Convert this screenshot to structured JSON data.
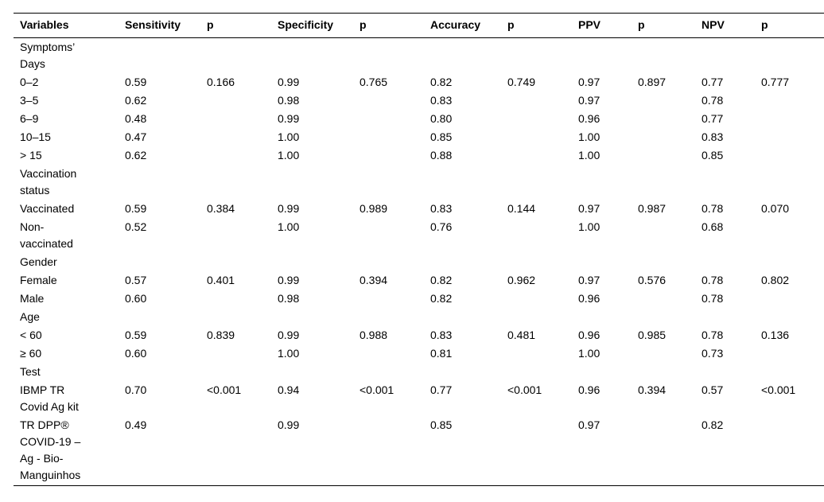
{
  "table": {
    "header": [
      "Variables",
      "Sensitivity",
      "p",
      "Specificity",
      "p",
      "Accuracy",
      "p",
      "PPV",
      "p",
      "NPV",
      "p"
    ],
    "rows": [
      {
        "label": "Symptoms’ Days"
      },
      {
        "cells": [
          "0–2",
          "0.59",
          "0.166",
          "0.99",
          "0.765",
          "0.82",
          "0.749",
          "0.97",
          "0.897",
          "0.77",
          "0.777"
        ]
      },
      {
        "cells": [
          "3–5",
          "0.62",
          null,
          "0.98",
          null,
          "0.83",
          null,
          "0.97",
          null,
          "0.78",
          null
        ]
      },
      {
        "cells": [
          "6–9",
          "0.48",
          null,
          "0.99",
          null,
          "0.80",
          null,
          "0.96",
          null,
          "0.77",
          null
        ]
      },
      {
        "cells": [
          "10–15",
          "0.47",
          null,
          "1.00",
          null,
          "0.85",
          null,
          "1.00",
          null,
          "0.83",
          null
        ]
      },
      {
        "cells": [
          "> 15",
          "0.62",
          null,
          "1.00",
          null,
          "0.88",
          null,
          "1.00",
          null,
          "0.85",
          null
        ]
      },
      {
        "label": "Vaccination status"
      },
      {
        "cells": [
          "Vaccinated",
          "0.59",
          "0.384",
          "0.99",
          "0.989",
          "0.83",
          "0.144",
          "0.97",
          "0.987",
          "0.78",
          "0.070"
        ]
      },
      {
        "cells": [
          "Non-vaccinated",
          "0.52",
          null,
          "1.00",
          null,
          "0.76",
          null,
          "1.00",
          null,
          "0.68",
          null
        ]
      },
      {
        "label": "Gender"
      },
      {
        "cells": [
          "Female",
          "0.57",
          "0.401",
          "0.99",
          "0.394",
          "0.82",
          "0.962",
          "0.97",
          "0.576",
          "0.78",
          "0.802"
        ]
      },
      {
        "cells": [
          "Male",
          "0.60",
          null,
          "0.98",
          null,
          "0.82",
          null,
          "0.96",
          null,
          "0.78",
          null
        ]
      },
      {
        "label": "Age"
      },
      {
        "cells": [
          "< 60",
          "0.59",
          "0.839",
          "0.99",
          "0.988",
          "0.83",
          "0.481",
          "0.96",
          "0.985",
          "0.78",
          "0.136"
        ]
      },
      {
        "cells": [
          "≥ 60",
          "0.60",
          null,
          "1.00",
          null,
          "0.81",
          null,
          "1.00",
          null,
          "0.73",
          null
        ]
      },
      {
        "label": "Test"
      },
      {
        "cells": [
          "IBMP TR Covid Ag kit",
          "0.70",
          "<0.001",
          "0.94",
          "<0.001",
          "0.77",
          "<0.001",
          "0.96",
          "0.394",
          "0.57",
          "<0.001"
        ]
      },
      {
        "cells": [
          "TR DPP® COVID-19 – Ag - Bio-Manguinhos",
          "0.49",
          null,
          "0.99",
          null,
          "0.85",
          null,
          "0.97",
          null,
          "0.82",
          null
        ]
      }
    ]
  }
}
